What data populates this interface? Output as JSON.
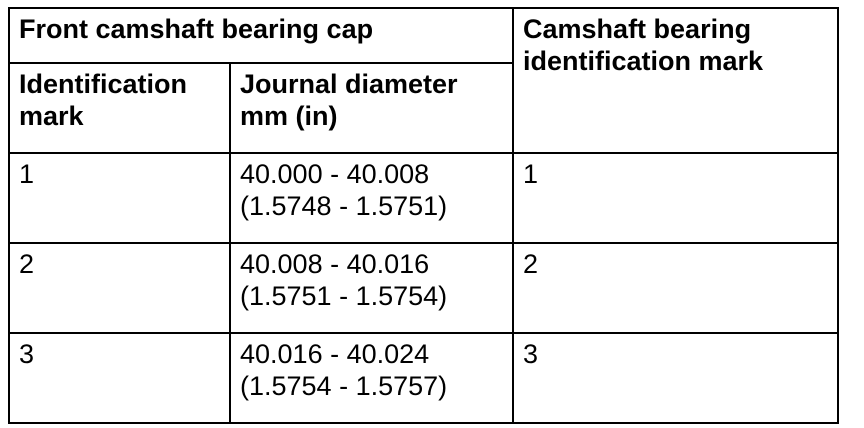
{
  "table": {
    "header": {
      "group_label": "Front camshaft bearing cap",
      "col3_label": "Camshaft bearing identification mark",
      "col1_label": "Identification mark",
      "col2_label": "Journal diameter mm (in)"
    },
    "rows": [
      {
        "id_mark": "1",
        "diameter_mm": "40.000 - 40.008",
        "diameter_in": "(1.5748 - 1.5751)",
        "camshaft_mark": "1"
      },
      {
        "id_mark": "2",
        "diameter_mm": "40.008 - 40.016",
        "diameter_in": "(1.5751 - 1.5754)",
        "camshaft_mark": "2"
      },
      {
        "id_mark": "3",
        "diameter_mm": "40.016 - 40.024",
        "diameter_in": "(1.5754 - 1.5757)",
        "camshaft_mark": "3"
      }
    ]
  }
}
